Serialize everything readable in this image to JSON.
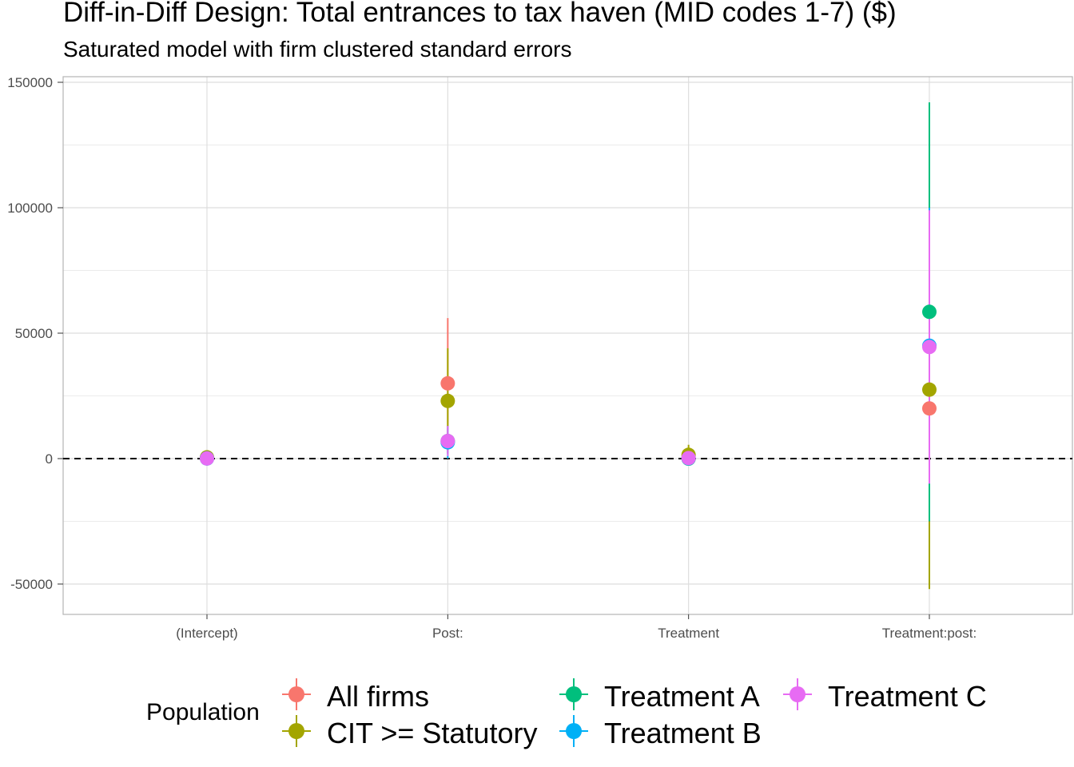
{
  "title": "Diff-in-Diff Design: Total entrances to tax haven (MID codes 1-7)  ($)",
  "subtitle": "Saturated model with firm clustered standard errors",
  "legend_title": "Population",
  "chart_data": {
    "type": "scatter",
    "subtype": "coefficient plot with error bars",
    "categories": [
      "(Intercept)",
      "Post:",
      "Treatment",
      "Treatment:post:"
    ],
    "ylim": [
      -60000,
      150000
    ],
    "yticks": [
      -50000,
      0,
      50000,
      100000,
      150000
    ],
    "ytick_labels": [
      "-50000",
      "0",
      "50000",
      "100000",
      "150000"
    ],
    "reference_line": 0,
    "grid": true,
    "legend_position": "bottom",
    "series": [
      {
        "name": "All firms",
        "color": "#F8766D",
        "values": [
          300,
          30000,
          800,
          20000
        ],
        "lower": [
          0,
          4000,
          0,
          -40000
        ],
        "upper": [
          700,
          56000,
          2000,
          80000
        ]
      },
      {
        "name": "CIT >= Statutory",
        "color": "#A3A500",
        "values": [
          500,
          23000,
          1500,
          27500
        ],
        "lower": [
          0,
          2000,
          -1500,
          -52000
        ],
        "upper": [
          1000,
          44000,
          5500,
          108000
        ]
      },
      {
        "name": "Treatment A",
        "color": "#00BF7D",
        "values": [
          100,
          7000,
          0,
          58500
        ],
        "lower": [
          0,
          2000,
          -1000,
          -25000
        ],
        "upper": [
          300,
          12000,
          1000,
          142000
        ]
      },
      {
        "name": "Treatment B",
        "color": "#00B0F6",
        "values": [
          50,
          6500,
          100,
          45000
        ],
        "lower": [
          0,
          0,
          -500,
          -10000
        ],
        "upper": [
          200,
          13000,
          700,
          100000
        ]
      },
      {
        "name": "Treatment C",
        "color": "#E76BF3",
        "values": [
          60,
          7000,
          200,
          44500
        ],
        "lower": [
          0,
          1000,
          -500,
          -10000
        ],
        "upper": [
          200,
          13000,
          900,
          99000
        ]
      }
    ]
  }
}
